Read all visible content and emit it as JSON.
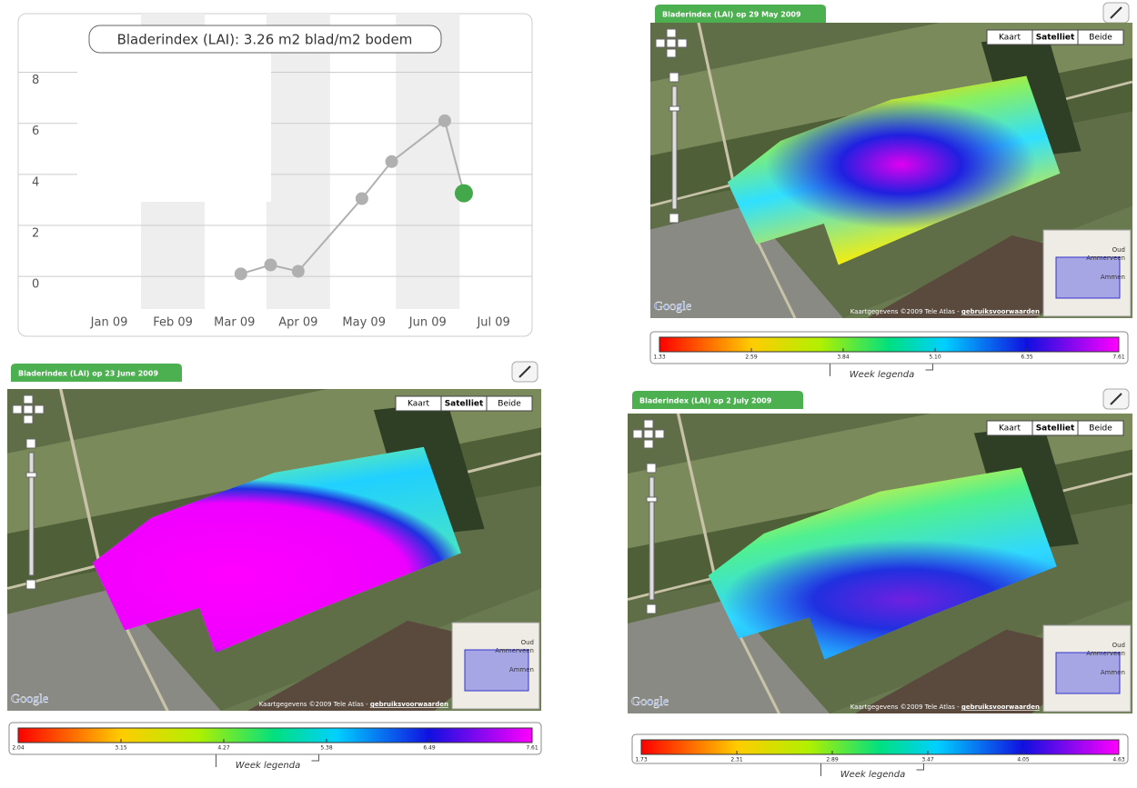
{
  "chart_data": {
    "type": "line",
    "annotation": "Bladerindex (LAI): 3.26 m2 blad/m2 bodem",
    "x": [
      "2009-03-19",
      "2009-04-02",
      "2009-04-15",
      "2009-05-15",
      "2009-05-29",
      "2009-06-23",
      "2009-07-02"
    ],
    "values": [
      0.1,
      0.45,
      0.2,
      3.05,
      4.5,
      6.1,
      3.26
    ],
    "color": "#b0b0b0",
    "highlight_color": "#43a84a",
    "xlim": [
      "2009-01-01",
      "2009-08-01"
    ],
    "xticks": [
      {
        "value": "2009-01-16",
        "label": "Jan 09"
      },
      {
        "value": "2009-02-15",
        "label": "Feb 09"
      },
      {
        "value": "2009-03-16",
        "label": "Mar 09"
      },
      {
        "value": "2009-04-15",
        "label": "Apr 09"
      },
      {
        "value": "2009-05-16",
        "label": "May 09"
      },
      {
        "value": "2009-06-15",
        "label": "Jun 09"
      },
      {
        "value": "2009-07-16",
        "label": "Jul 09"
      }
    ],
    "ylim": [
      -1.1,
      10.3
    ],
    "yticks": [
      0,
      2,
      4,
      6,
      8
    ],
    "grid": true
  },
  "maps": [
    {
      "title": "Bladerindex (LAI) op 29 May 2009",
      "buttons": [
        "Kaart",
        "Satelliet",
        "Beide"
      ],
      "attribution": "Kaartgegevens ©2009 Tele Atlas - ",
      "terms": "gebruiksvoorwaarden",
      "logo": "Google",
      "inset_labels": [
        "Oud",
        "Ammerveen",
        "Ammen"
      ],
      "legend_ticks": [
        "1.33",
        "2.59",
        "3.84",
        "5.10",
        "6.35",
        "7.61"
      ],
      "legend_label": "Week legenda"
    },
    {
      "title": "Bladerindex (LAI) op 23 June 2009",
      "buttons": [
        "Kaart",
        "Satelliet",
        "Beide"
      ],
      "attribution": "Kaartgegevens ©2009 Tele Atlas - ",
      "terms": "gebruiksvoorwaarden",
      "logo": "Google",
      "inset_labels": [
        "Oud",
        "Ammerveen",
        "Ammen"
      ],
      "legend_ticks": [
        "2.04",
        "3.15",
        "4.27",
        "5.38",
        "6.49",
        "7.61"
      ],
      "legend_label": "Week legenda"
    },
    {
      "title": "Bladerindex (LAI) op 2 July 2009",
      "buttons": [
        "Kaart",
        "Satelliet",
        "Beide"
      ],
      "attribution": "Kaartgegevens ©2009 Tele Atlas - ",
      "terms": "gebruiksvoorwaarden",
      "logo": "Google",
      "inset_labels": [
        "Oud",
        "Ammerveen",
        "Ammen"
      ],
      "legend_ticks": [
        "1.73",
        "2.31",
        "2.89",
        "3.47",
        "4.05",
        "4.63"
      ],
      "legend_label": "Week legenda"
    }
  ]
}
